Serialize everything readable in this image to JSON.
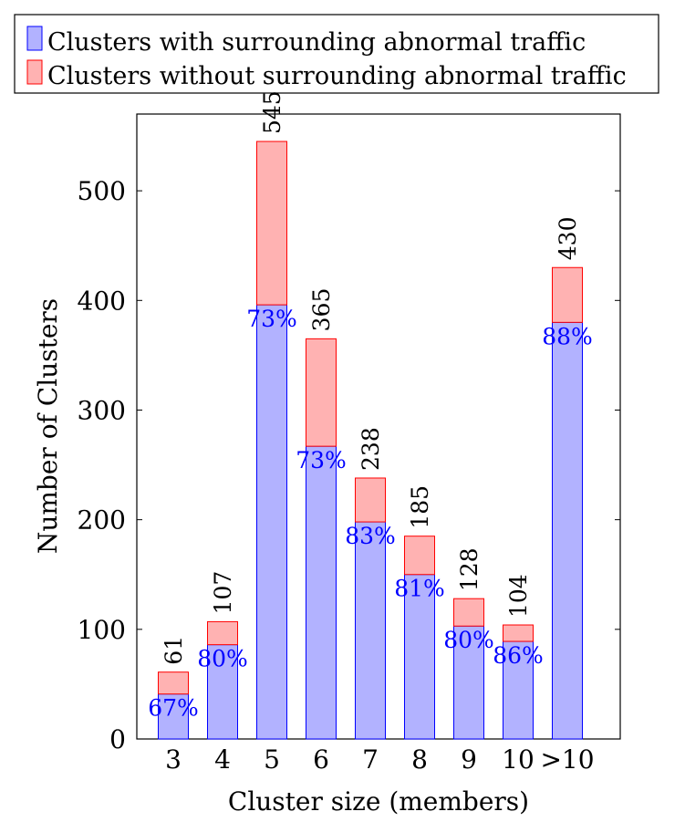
{
  "chart_data": {
    "type": "bar",
    "stacked": true,
    "title": "",
    "xlabel": "Cluster size (members)",
    "ylabel": "Number of Clusters",
    "ylim": [
      0,
      570
    ],
    "y_ticks": [
      0,
      100,
      200,
      300,
      400,
      500
    ],
    "grid": false,
    "legend_position": "top-left, outside plot",
    "categories": [
      "3",
      "4",
      "5",
      "6",
      "7",
      "8",
      "9",
      "10",
      ">10"
    ],
    "series": [
      {
        "name": "Clusters with surrounding abnormal traffic",
        "color": "#b2b2ff",
        "edge_color": "#0000ff",
        "values": [
          41,
          86,
          396,
          267,
          198,
          150,
          103,
          89,
          380
        ]
      },
      {
        "name": "Clusters without surrounding abnormal traffic",
        "color": "#ffb2b2",
        "edge_color": "#ff0000",
        "values": [
          20,
          21,
          149,
          98,
          40,
          35,
          25,
          15,
          50
        ]
      }
    ],
    "totals": [
      61,
      107,
      545,
      365,
      238,
      185,
      128,
      104,
      430
    ],
    "percent_labels": [
      "67%",
      "80%",
      "73%",
      "73%",
      "83%",
      "81%",
      "80%",
      "86%",
      "88%"
    ],
    "percent_label_color": "#0000ff"
  }
}
